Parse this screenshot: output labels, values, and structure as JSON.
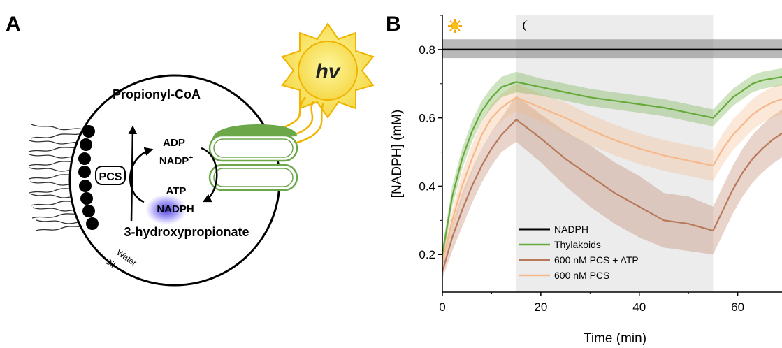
{
  "panel_a": {
    "label": "A",
    "sun_text": "hv",
    "propionyl": "Propionyl-CoA",
    "hydroxy": "3-hydroxypropionate",
    "pcs": "PCS",
    "adp": "ADP",
    "nadp": "NADP",
    "nadp_sup": "+",
    "atp": "ATP",
    "nadph": "NADPH",
    "water": "Water",
    "oil": "Oil"
  },
  "panel_b": {
    "label": "B",
    "sun_icon": "sun-icon",
    "moon_icon": "moon-icon"
  },
  "chart_data": {
    "type": "line",
    "xlabel": "Time (min)",
    "ylabel": "[NADPH] (mM)",
    "xlim": [
      0,
      69
    ],
    "ylim": [
      0.09,
      0.9
    ],
    "xticks": [
      0,
      20,
      40,
      60
    ],
    "yticks": [
      0.2,
      0.4,
      0.6,
      0.8
    ],
    "x_tick_labels": [
      "0",
      "20",
      "40",
      "60"
    ],
    "y_tick_labels": [
      "0.2",
      "0.4",
      "0.6",
      "0.8"
    ],
    "dark_period": [
      15,
      55
    ],
    "legend_position": "bottom-center",
    "series": [
      {
        "name": "NADPH",
        "color": "#000000",
        "band_color": "#808080",
        "x": [
          0,
          69
        ],
        "y": [
          0.8,
          0.8
        ],
        "lower": [
          0.775,
          0.775
        ],
        "upper": [
          0.83,
          0.83
        ]
      },
      {
        "name": "Thylakoids",
        "color": "#66aa3c",
        "band_color": "#66aa3c",
        "x": [
          0,
          2,
          4,
          6,
          8,
          10,
          12,
          15,
          20,
          25,
          30,
          35,
          40,
          45,
          50,
          55,
          57,
          59,
          61,
          63,
          65,
          67,
          69
        ],
        "y": [
          0.2,
          0.37,
          0.48,
          0.56,
          0.62,
          0.66,
          0.69,
          0.705,
          0.69,
          0.675,
          0.66,
          0.65,
          0.64,
          0.63,
          0.615,
          0.6,
          0.63,
          0.66,
          0.68,
          0.7,
          0.71,
          0.715,
          0.72
        ],
        "lower": [
          0.18,
          0.34,
          0.45,
          0.53,
          0.59,
          0.63,
          0.66,
          0.675,
          0.665,
          0.65,
          0.635,
          0.625,
          0.615,
          0.605,
          0.59,
          0.575,
          0.605,
          0.635,
          0.655,
          0.675,
          0.685,
          0.69,
          0.695
        ],
        "upper": [
          0.22,
          0.4,
          0.51,
          0.59,
          0.65,
          0.69,
          0.72,
          0.735,
          0.715,
          0.7,
          0.685,
          0.675,
          0.665,
          0.655,
          0.64,
          0.625,
          0.655,
          0.685,
          0.705,
          0.725,
          0.735,
          0.74,
          0.745
        ]
      },
      {
        "name": "600 nM PCS + ATP",
        "color": "#b8785a",
        "band_color": "#b8785a",
        "x": [
          0,
          2,
          4,
          6,
          8,
          10,
          12,
          15,
          20,
          25,
          30,
          35,
          40,
          45,
          50,
          55,
          57,
          59,
          61,
          63,
          65,
          67,
          69
        ],
        "y": [
          0.15,
          0.25,
          0.33,
          0.4,
          0.46,
          0.51,
          0.55,
          0.595,
          0.54,
          0.48,
          0.43,
          0.38,
          0.34,
          0.3,
          0.29,
          0.27,
          0.33,
          0.39,
          0.44,
          0.48,
          0.51,
          0.535,
          0.555
        ],
        "lower": [
          0.13,
          0.21,
          0.28,
          0.35,
          0.41,
          0.46,
          0.5,
          0.53,
          0.47,
          0.4,
          0.34,
          0.29,
          0.25,
          0.22,
          0.21,
          0.2,
          0.26,
          0.32,
          0.37,
          0.41,
          0.44,
          0.465,
          0.485
        ],
        "upper": [
          0.17,
          0.29,
          0.38,
          0.45,
          0.51,
          0.56,
          0.6,
          0.665,
          0.61,
          0.56,
          0.52,
          0.47,
          0.43,
          0.38,
          0.37,
          0.34,
          0.4,
          0.46,
          0.51,
          0.55,
          0.58,
          0.605,
          0.625
        ]
      },
      {
        "name": "600 nM PCS",
        "color": "#f6b88a",
        "band_color": "#f6b88a",
        "x": [
          0,
          2,
          4,
          6,
          8,
          10,
          12,
          15,
          20,
          25,
          30,
          35,
          40,
          45,
          50,
          55,
          57,
          59,
          61,
          63,
          65,
          67,
          69
        ],
        "y": [
          0.18,
          0.3,
          0.4,
          0.48,
          0.55,
          0.6,
          0.63,
          0.66,
          0.63,
          0.6,
          0.565,
          0.535,
          0.51,
          0.49,
          0.475,
          0.46,
          0.51,
          0.55,
          0.58,
          0.61,
          0.63,
          0.645,
          0.655
        ],
        "lower": [
          0.16,
          0.27,
          0.36,
          0.44,
          0.51,
          0.56,
          0.59,
          0.62,
          0.59,
          0.555,
          0.52,
          0.49,
          0.465,
          0.445,
          0.43,
          0.415,
          0.465,
          0.505,
          0.535,
          0.565,
          0.585,
          0.6,
          0.61
        ],
        "upper": [
          0.2,
          0.33,
          0.44,
          0.52,
          0.59,
          0.64,
          0.67,
          0.7,
          0.67,
          0.645,
          0.61,
          0.58,
          0.555,
          0.535,
          0.52,
          0.505,
          0.555,
          0.595,
          0.625,
          0.655,
          0.675,
          0.69,
          0.7
        ]
      }
    ]
  }
}
